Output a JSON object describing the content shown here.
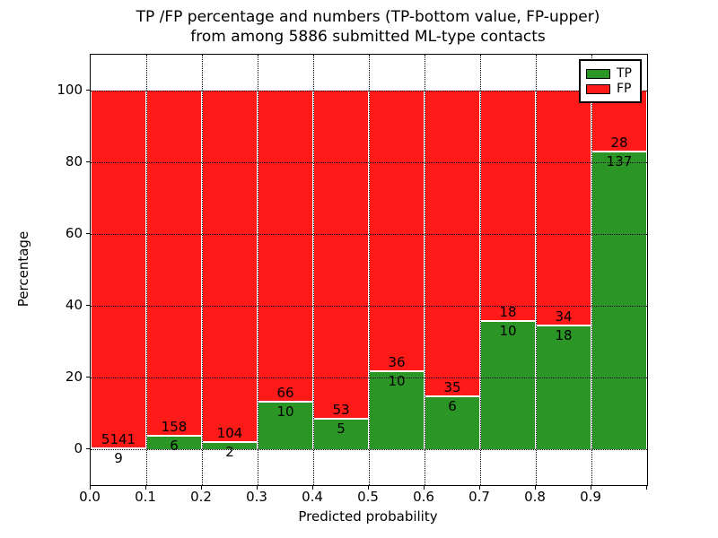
{
  "chart_data": {
    "type": "bar",
    "stacked": true,
    "title_line1": "TP /FP percentage and numbers (TP-bottom value, FP-upper)",
    "title_line2": "from among 5886 submitted ML-type contacts",
    "xlabel": "Predicted probability",
    "ylabel": "Percentage",
    "total_contacts": 5886,
    "bins": [
      0.0,
      0.1,
      0.2,
      0.3,
      0.4,
      0.5,
      0.6,
      0.7,
      0.8,
      0.9,
      1.0
    ],
    "series": [
      {
        "name": "TP",
        "color": "#2b9626",
        "counts": [
          9,
          6,
          2,
          10,
          5,
          10,
          6,
          10,
          18,
          137
        ]
      },
      {
        "name": "FP",
        "color": "#ff1a1a",
        "counts": [
          5141,
          158,
          104,
          66,
          53,
          36,
          35,
          18,
          34,
          28
        ]
      }
    ],
    "bar_total_percent": 100,
    "x_tick_labels": [
      "0.0",
      "0.1",
      "0.2",
      "0.3",
      "0.4",
      "0.5",
      "0.6",
      "0.7",
      "0.8",
      "0.9"
    ],
    "y_tick_values": [
      0,
      20,
      40,
      60,
      80,
      100
    ],
    "xlim": [
      0.0,
      1.0
    ],
    "ylim": [
      -10,
      110
    ],
    "grid": "dotted",
    "legend_position": "upper right"
  }
}
